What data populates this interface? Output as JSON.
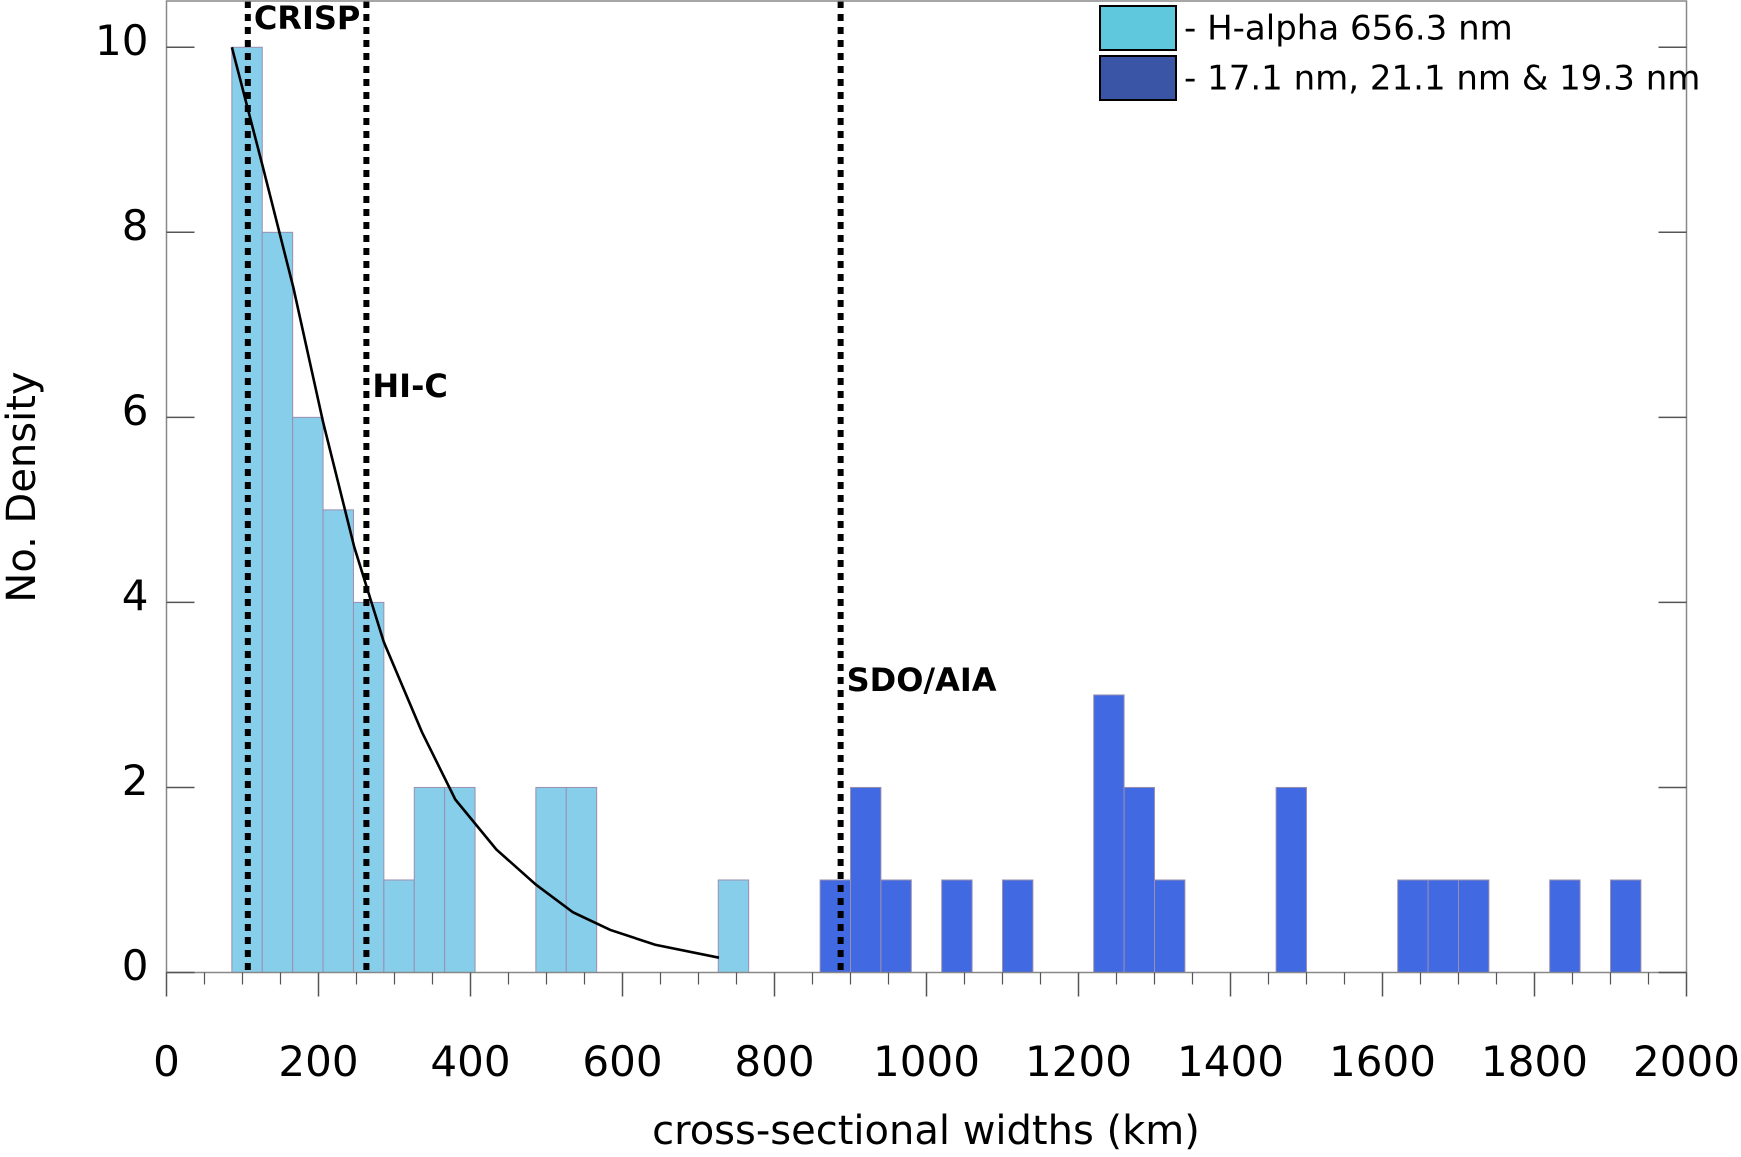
{
  "chart_data": {
    "type": "histogram",
    "xlabel": "cross-sectional widths (km)",
    "ylabel": "No. Density",
    "xlim": [
      0,
      2000
    ],
    "ylim": [
      0,
      10.5
    ],
    "xticks": [
      0,
      200,
      400,
      600,
      800,
      1000,
      1200,
      1400,
      1600,
      1800,
      2000
    ],
    "xminorticks": [
      50,
      100,
      150,
      250,
      300,
      350,
      450,
      500,
      550,
      650,
      700,
      750,
      850,
      900,
      950,
      1050,
      1100,
      1150,
      1250,
      1300,
      1350,
      1450,
      1500,
      1550,
      1650,
      1700,
      1750,
      1850,
      1900,
      1950
    ],
    "yticks": [
      0,
      2,
      4,
      6,
      8,
      10
    ],
    "legend": "upper right",
    "series": [
      {
        "name": "- H-alpha 656.3 nm",
        "color": "#87ceeb",
        "legend_color": "#5fc8dc",
        "bins": [
          86,
          126,
          166,
          206,
          246,
          286,
          326,
          366,
          406,
          446,
          486,
          526,
          566,
          606,
          646,
          686,
          726,
          766
        ],
        "values": [
          10,
          8,
          6,
          5,
          4,
          1,
          2,
          2,
          0,
          0,
          2,
          2,
          0,
          0,
          0,
          0,
          1
        ]
      },
      {
        "name": "- 17.1 nm, 21.1 nm & 19.3 nm",
        "color": "#4169e1",
        "legend_color": "#3a55a5",
        "bins": [
          860,
          900,
          940,
          980,
          1020,
          1060,
          1100,
          1140,
          1180,
          1220,
          1260,
          1300,
          1340,
          1380,
          1420,
          1460,
          1500,
          1540,
          1580,
          1620,
          1660,
          1700,
          1740,
          1780,
          1820,
          1860,
          1900,
          1940
        ],
        "values": [
          1,
          2,
          1,
          0,
          1,
          0,
          1,
          0,
          0,
          3,
          2,
          1,
          0,
          0,
          0,
          2,
          0,
          0,
          0,
          1,
          1,
          1,
          0,
          0,
          1,
          0,
          1
        ]
      }
    ],
    "fit": {
      "color": "#000000",
      "x": [
        86,
        127,
        167,
        206,
        247,
        286,
        336,
        380,
        434,
        486,
        535,
        584,
        643,
        727
      ],
      "values": [
        10,
        8.7,
        7.4,
        5.95,
        4.6,
        3.57,
        2.6,
        1.87,
        1.33,
        0.95,
        0.65,
        0.46,
        0.3,
        0.16
      ]
    },
    "vlines": [
      {
        "x": 107,
        "label": "CRISP"
      },
      {
        "x": 263,
        "label": "HI-C"
      },
      {
        "x": 887,
        "label": "SDO/AIA"
      }
    ]
  }
}
